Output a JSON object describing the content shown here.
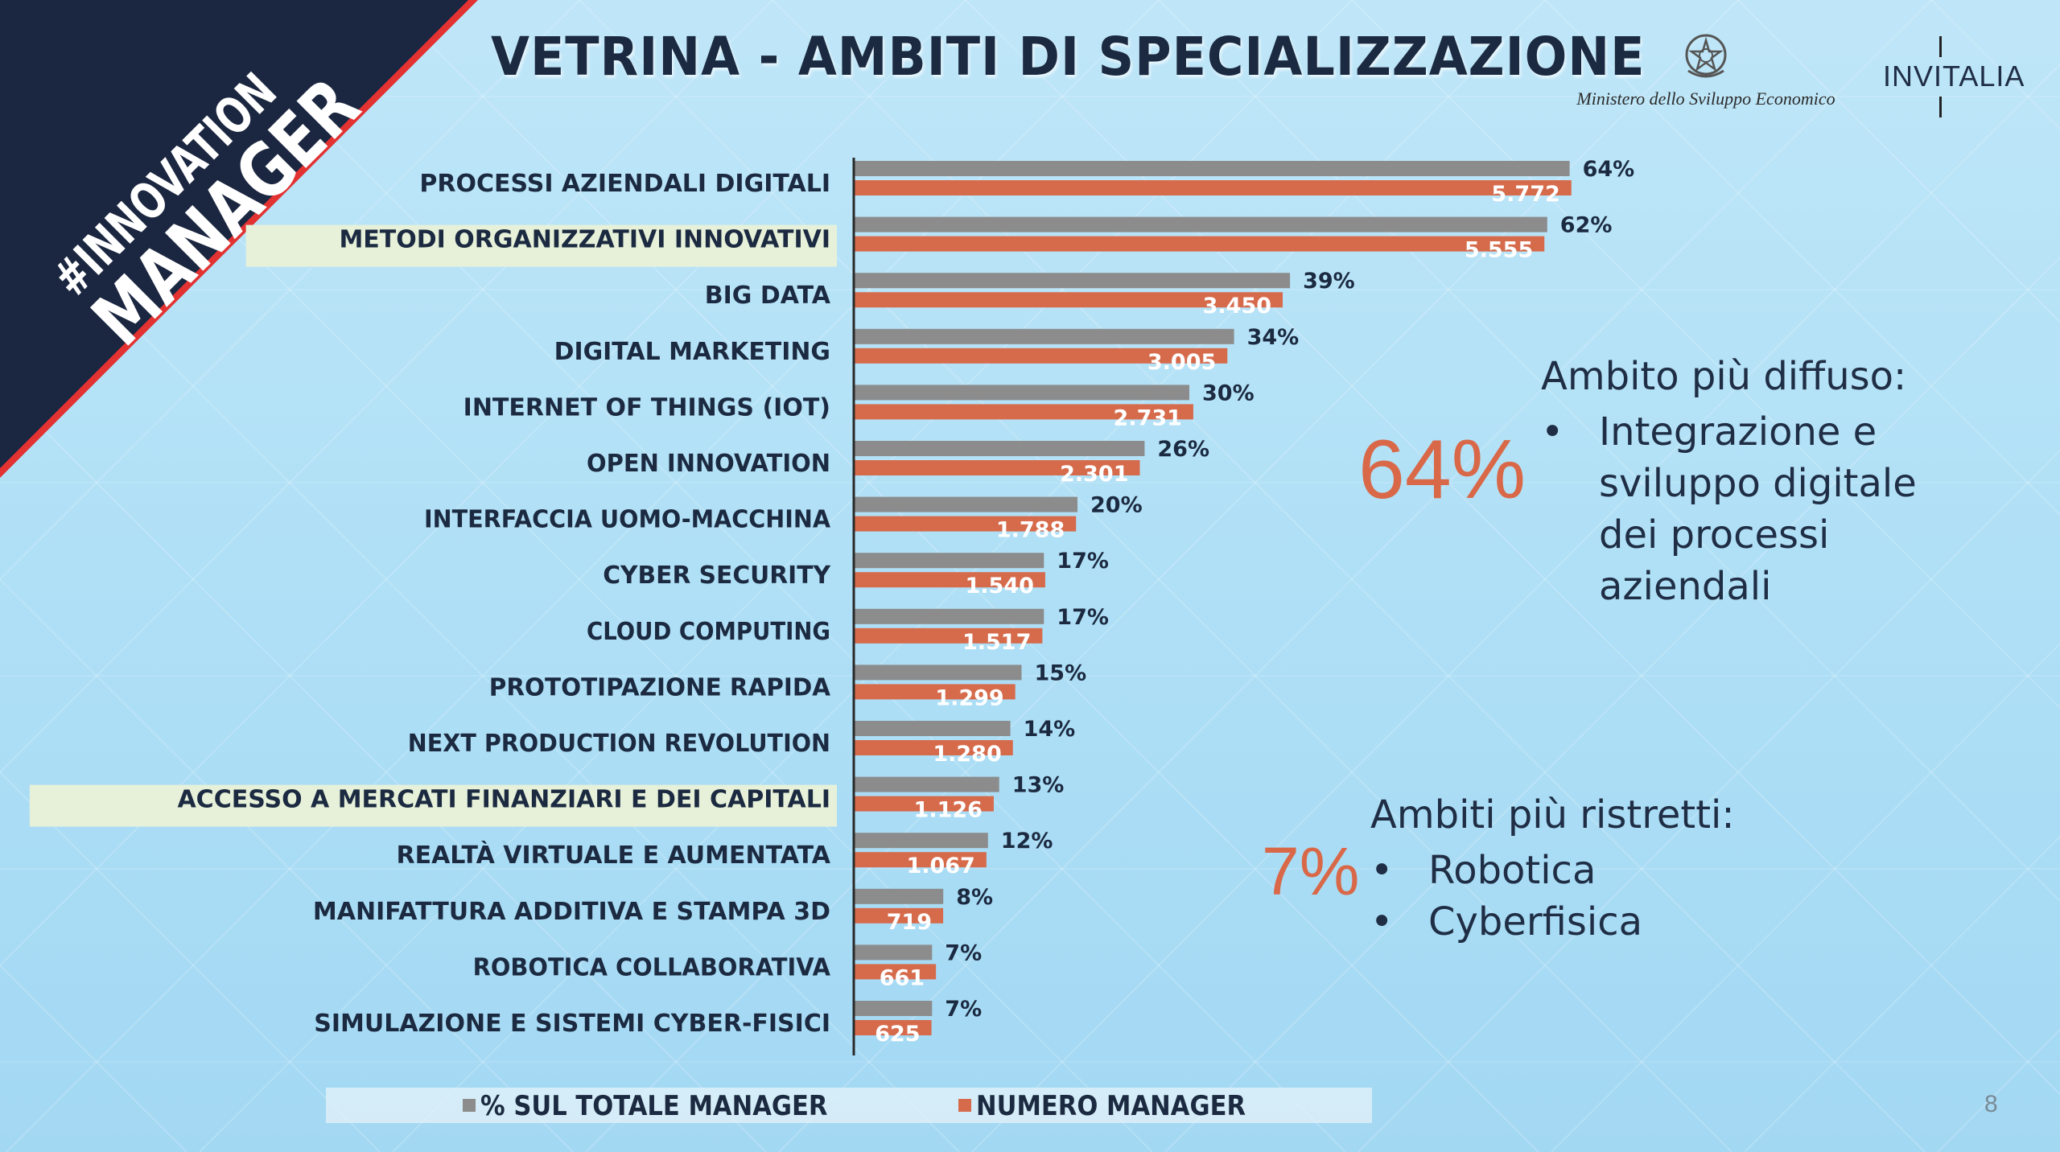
{
  "slide": {
    "title": "VETRINA - AMBITI DI SPECIALIZZAZIONE",
    "hashtag_line1": "#INNOVATION",
    "hashtag_line2": "MANAGER",
    "ministry_name": "Ministero dello Sviluppo Economico",
    "invitalia": "INVITALIA",
    "page_number": "8"
  },
  "colors": {
    "pct_bar": "#8c8c8c",
    "num_bar": "#d66b4c",
    "accent": "#d96848",
    "navy": "#1b2a40",
    "highlight": "#e7f1da"
  },
  "callouts": {
    "top": {
      "value": "64%",
      "heading": "Ambito più diffuso:",
      "items": [
        "Integrazione e sviluppo digitale dei processi aziendali"
      ]
    },
    "bottom": {
      "value": "7%",
      "heading": "Ambiti più ristretti:",
      "items": [
        "Robotica",
        "Cyberfisica"
      ]
    }
  },
  "chart_data": {
    "type": "bar",
    "orientation": "horizontal",
    "categories": [
      "PROCESSI AZIENDALI DIGITALI",
      "METODI ORGANIZZATIVI INNOVATIVI",
      "BIG DATA",
      "DIGITAL MARKETING",
      "INTERNET OF THINGS (IOT)",
      "OPEN INNOVATION",
      "INTERFACCIA UOMO-MACCHINA",
      "CYBER SECURITY",
      "CLOUD COMPUTING",
      "PROTOTIPAZIONE RAPIDA",
      "NEXT PRODUCTION REVOLUTION",
      "ACCESSO A MERCATI FINANZIARI E DEI CAPITALI",
      "REALTÀ VIRTUALE E AUMENTATA",
      "MANIFATTURA ADDITIVA E STAMPA 3D",
      "ROBOTICA COLLABORATIVA",
      "SIMULAZIONE E SISTEMI CYBER-FISICI"
    ],
    "highlighted": [
      1,
      11
    ],
    "series": [
      {
        "name": "% SUL TOTALE MANAGER",
        "values": [
          64,
          62,
          39,
          34,
          30,
          26,
          20,
          17,
          17,
          15,
          14,
          13,
          12,
          8,
          7,
          7
        ],
        "labels": [
          "64%",
          "62%",
          "39%",
          "34%",
          "30%",
          "26%",
          "20%",
          "17%",
          "17%",
          "15%",
          "14%",
          "13%",
          "12%",
          "8%",
          "7%",
          "7%"
        ]
      },
      {
        "name": "NUMERO MANAGER",
        "values": [
          5772,
          5555,
          3450,
          3005,
          2731,
          2301,
          1788,
          1540,
          1517,
          1299,
          1280,
          1126,
          1067,
          719,
          661,
          625
        ],
        "labels": [
          "5.772",
          "5.555",
          "3.450",
          "3.005",
          "2.731",
          "2.301",
          "1.788",
          "1.540",
          "1.517",
          "1.299",
          "1.280",
          "1.126",
          "1.067",
          "719",
          "661",
          "625"
        ]
      }
    ],
    "title": "",
    "xlabel": "",
    "ylabel": "",
    "legend": "bottom"
  }
}
